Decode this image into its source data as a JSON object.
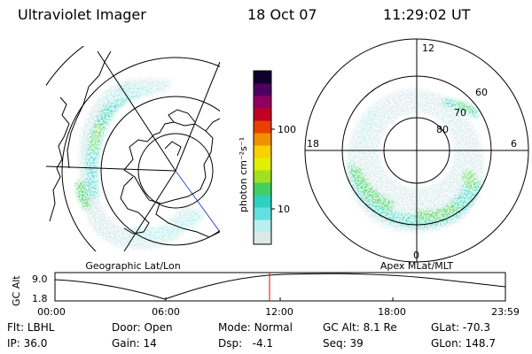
{
  "header": {
    "instrument": "Ultraviolet Imager",
    "date": "18 Oct 07",
    "time": "11:29:02 UT"
  },
  "geo_panel": {
    "caption": "Geographic Lat/Lon"
  },
  "colorbar": {
    "unit_label": "photon cm⁻²s⁻¹",
    "ticks": [
      {
        "label": "100",
        "value": 100
      },
      {
        "label": "10",
        "value": 10
      }
    ],
    "colors": [
      "#dde8e8",
      "#b8f0f0",
      "#60e0e0",
      "#30d0c0",
      "#40d060",
      "#a0e020",
      "#e0f000",
      "#f8d000",
      "#f09000",
      "#e84000",
      "#c00020",
      "#900060",
      "#500060",
      "#100030"
    ]
  },
  "mag_panel": {
    "caption": "Apex MLat/MLT",
    "mlt_labels": [
      "12",
      "6",
      "0",
      "18"
    ],
    "mlat_labels": [
      "60",
      "70",
      "80"
    ]
  },
  "alt_plot": {
    "ylabel": "GC Alt",
    "yticks": [
      "9.0",
      "1.8"
    ],
    "xticks": [
      "00:00",
      "06:00",
      "12:00",
      "18:00",
      "23:59"
    ],
    "current_time_marker": "11:29"
  },
  "status": {
    "filter": {
      "label": "Flt:",
      "value": "LBHL"
    },
    "ip": {
      "label": "IP:",
      "value": "36.0"
    },
    "door": {
      "label": "Door:",
      "value": "Open"
    },
    "gain": {
      "label": "Gain:",
      "value": "14"
    },
    "mode": {
      "label": "Mode:",
      "value": "Normal"
    },
    "dsp": {
      "label": "Dsp:",
      "value": "-4.1"
    },
    "gc_alt": {
      "label": "GC Alt:",
      "value": "8.1 Re"
    },
    "seq": {
      "label": "Seq:",
      "value": "39"
    },
    "glat": {
      "label": "GLat:",
      "value": "-70.3"
    },
    "glon": {
      "label": "GLon:",
      "value": "148.7"
    }
  }
}
